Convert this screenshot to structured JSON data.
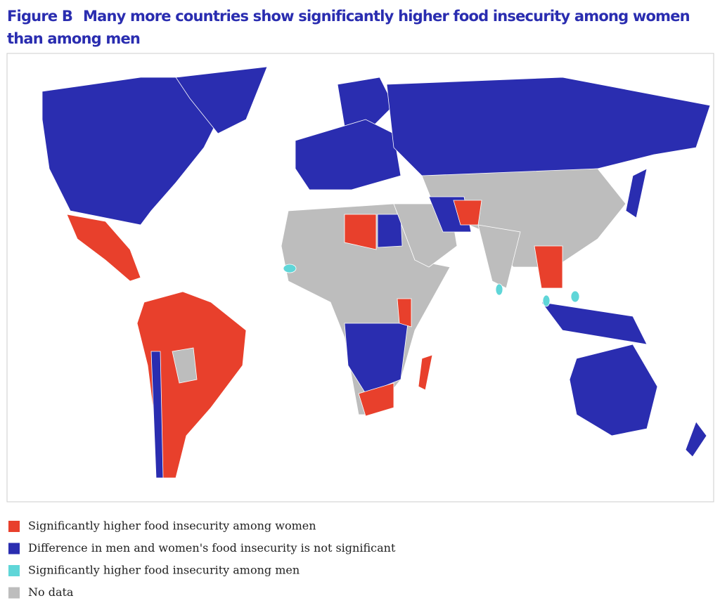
{
  "header": {
    "label": "Figure B",
    "title": "Many more countries show significantly higher food insecurity among women than among men"
  },
  "legend": [
    {
      "label": "Significantly higher food insecurity among women",
      "color": "#e8402c"
    },
    {
      "label": "Difference in men and women's food insecurity is not significant",
      "color": "#2a2db0"
    },
    {
      "label": "Significantly higher food insecurity among men",
      "color": "#5fd6d8"
    },
    {
      "label": "No data",
      "color": "#bdbdbd"
    }
  ]
}
